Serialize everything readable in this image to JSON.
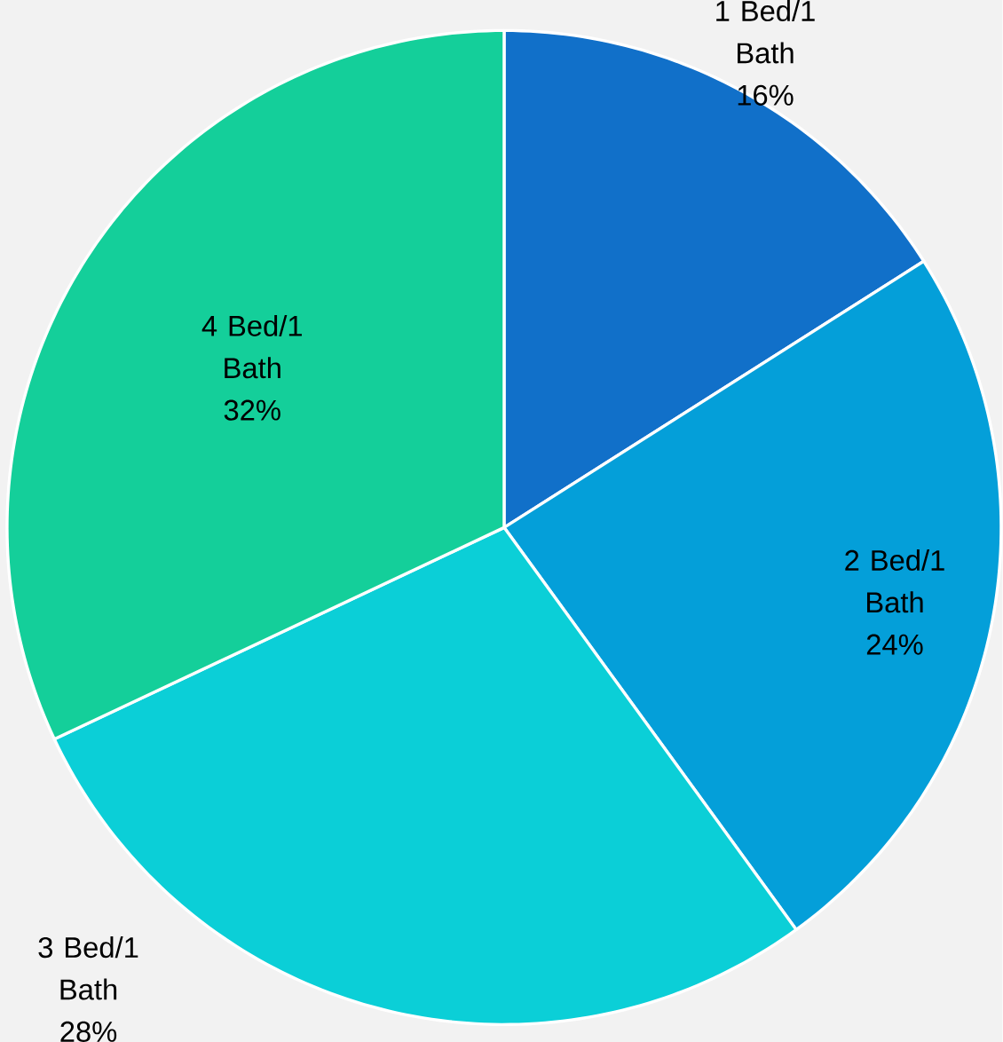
{
  "chart_data": {
    "type": "pie",
    "categories": [
      "1 Bed/1 Bath",
      "2 Bed/1 Bath",
      "3 Bed/1 Bath",
      "4 Bed/1 Bath"
    ],
    "values": [
      16,
      24,
      28,
      32
    ],
    "value_labels": [
      "16%",
      "24%",
      "28%",
      "32%"
    ],
    "colors": [
      "#1170c9",
      "#049fd9",
      "#0bcfd7",
      "#14cf9a"
    ]
  }
}
